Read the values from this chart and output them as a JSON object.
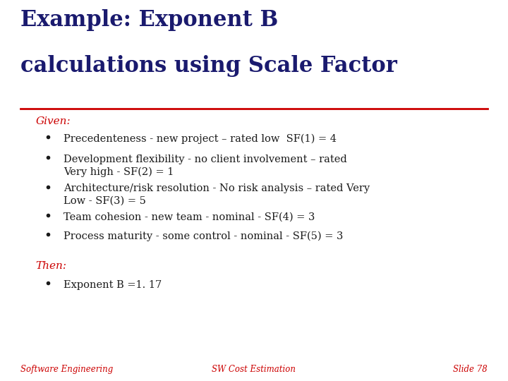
{
  "title_line1": "Example: Exponent B",
  "title_line2": "calculations using Scale Factor",
  "title_color": "#1a1a6e",
  "title_fontsize": 22,
  "separator_color": "#cc0000",
  "background_color": "#ffffff",
  "given_label": "Given:",
  "given_color": "#cc0000",
  "given_fontsize": 11,
  "bullets_color": "#1a1a1a",
  "bullet_fontsize": 10.5,
  "bullets": [
    "Precedenteness - new project – rated low  SF(1) = 4",
    "Development flexibility - no client involvement – rated\nVery high - SF(2) = 1",
    "Architecture/risk resolution - No risk analysis – rated Very\nLow - SF(3) = 5",
    "Team cohesion - new team - nominal - SF(4) = 3",
    "Process maturity - some control - nominal - SF(5) = 3"
  ],
  "then_label": "Then:",
  "then_color": "#cc0000",
  "then_fontsize": 11,
  "then_bullets": [
    "Exponent B =1. 17"
  ],
  "footer_left": "Software Engineering",
  "footer_center": "SW Cost Estimation",
  "footer_right": "Slide 78",
  "footer_color": "#cc0000",
  "footer_fontsize": 8.5
}
